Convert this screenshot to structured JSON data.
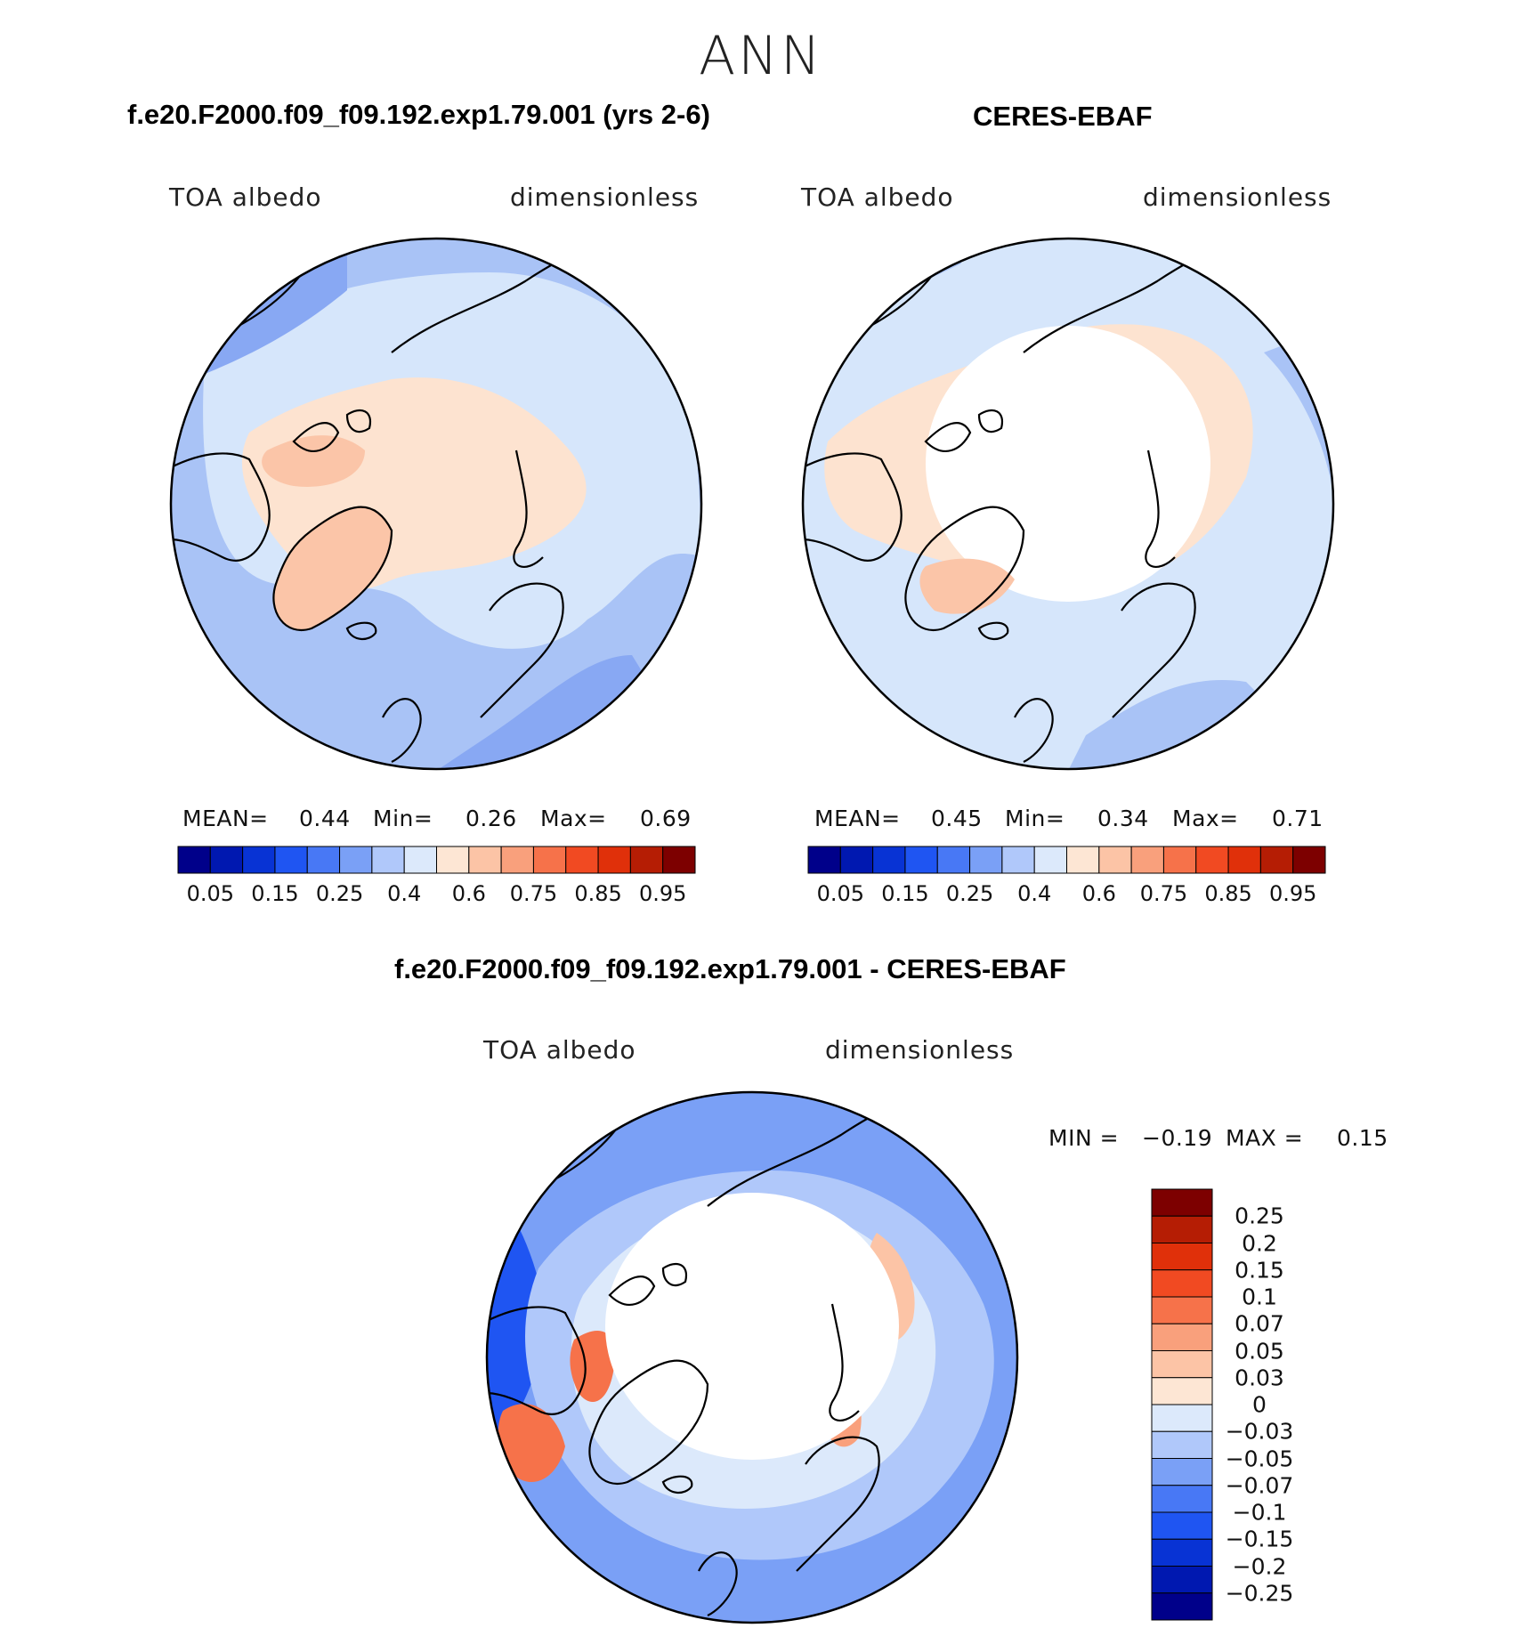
{
  "figure": {
    "season": "ANN",
    "panel_model": {
      "title": "f.e20.F2000.f09_f09.192.exp1.79.001 (yrs 2-6)",
      "variable": "TOA albedo",
      "units": "dimensionless",
      "mean_label": "MEAN=",
      "mean": "0.44",
      "min_label": "Min=",
      "min": "0.26",
      "max_label": "Max=",
      "max": "0.69"
    },
    "panel_obs": {
      "title": "CERES-EBAF",
      "variable": "TOA albedo",
      "units": "dimensionless",
      "mean_label": "MEAN=",
      "mean": "0.45",
      "min_label": "Min=",
      "min": "0.34",
      "max_label": "Max=",
      "max": "0.71"
    },
    "panel_diff": {
      "title": "f.e20.F2000.f09_f09.192.exp1.79.001 - CERES-EBAF",
      "variable": "TOA albedo",
      "units": "dimensionless",
      "min_label": "MIN =",
      "min": "−0.19",
      "max_label": "MAX =",
      "max": "0.15"
    },
    "colorbar_abs": {
      "labels": [
        "0.05",
        "0.15",
        "0.25",
        "0.4",
        "0.6",
        "0.75",
        "0.85",
        "0.95"
      ],
      "colors": [
        "#00008a",
        "#0018b0",
        "#0833d4",
        "#1f55f2",
        "#4878f5",
        "#7aa0f6",
        "#b0c8fa",
        "#dce9fb",
        "#fde6d4",
        "#fcc4a6",
        "#f9a07c",
        "#f6724a",
        "#f14a22",
        "#e0300a",
        "#b51d04",
        "#7d0000"
      ]
    },
    "colorbar_diff": {
      "labels": [
        "0.25",
        "0.2",
        "0.15",
        "0.1",
        "0.07",
        "0.05",
        "0.03",
        "0",
        "−0.03",
        "−0.05",
        "−0.07",
        "−0.1",
        "−0.15",
        "−0.2",
        "−0.25"
      ],
      "colors": [
        "#7d0000",
        "#b51d04",
        "#e0300a",
        "#f14a22",
        "#f6724a",
        "#f9a07c",
        "#fcc4a6",
        "#fde6d4",
        "#dce9fb",
        "#b0c8fa",
        "#7aa0f6",
        "#4878f5",
        "#1f55f2",
        "#0833d4",
        "#0018b0",
        "#00008a"
      ]
    }
  }
}
